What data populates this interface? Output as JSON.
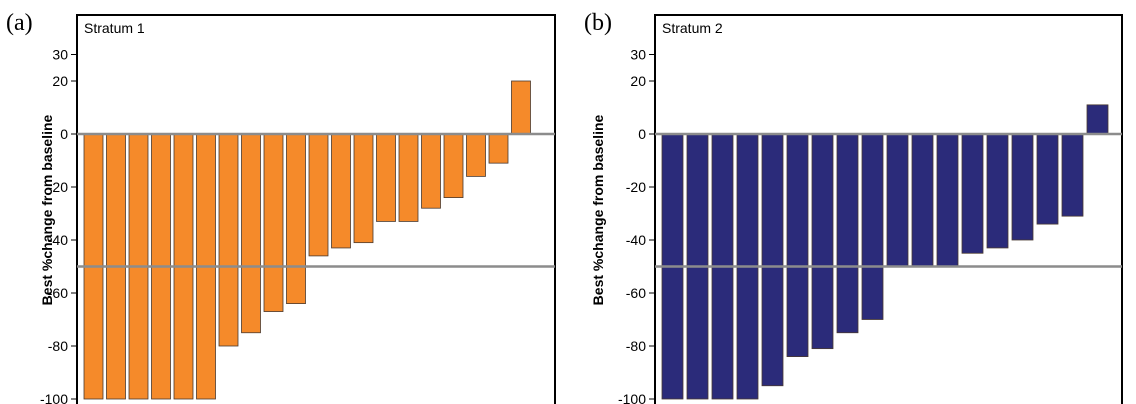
{
  "chart_data": [
    {
      "type": "bar",
      "panel_label": "(a)",
      "title": "Stratum 1",
      "xlabel": "",
      "ylabel": "Best %change from baseline",
      "ylim": [
        -100,
        35
      ],
      "yticks": [
        30,
        20,
        0,
        -20,
        -40,
        -60,
        -80,
        -100
      ],
      "reference_lines": [
        0,
        -50
      ],
      "bar_color": "#F58A2A",
      "values": [
        -100,
        -100,
        -100,
        -100,
        -100,
        -100,
        -80,
        -75,
        -67,
        -64,
        -46,
        -43,
        -41,
        -33,
        -33,
        -28,
        -24,
        -16,
        -11,
        20
      ]
    },
    {
      "type": "bar",
      "panel_label": "(b)",
      "title": "Stratum 2",
      "xlabel": "",
      "ylabel": "Best %change from baseline",
      "ylim": [
        -100,
        35
      ],
      "yticks": [
        30,
        20,
        0,
        -20,
        -40,
        -60,
        -80,
        -100
      ],
      "reference_lines": [
        0,
        -50
      ],
      "bar_color": "#2B2B7A",
      "values": [
        -100,
        -100,
        -100,
        -100,
        -95,
        -84,
        -81,
        -75,
        -70,
        -50,
        -50,
        -50,
        -45,
        -43,
        -40,
        -34,
        -31,
        11
      ]
    }
  ]
}
